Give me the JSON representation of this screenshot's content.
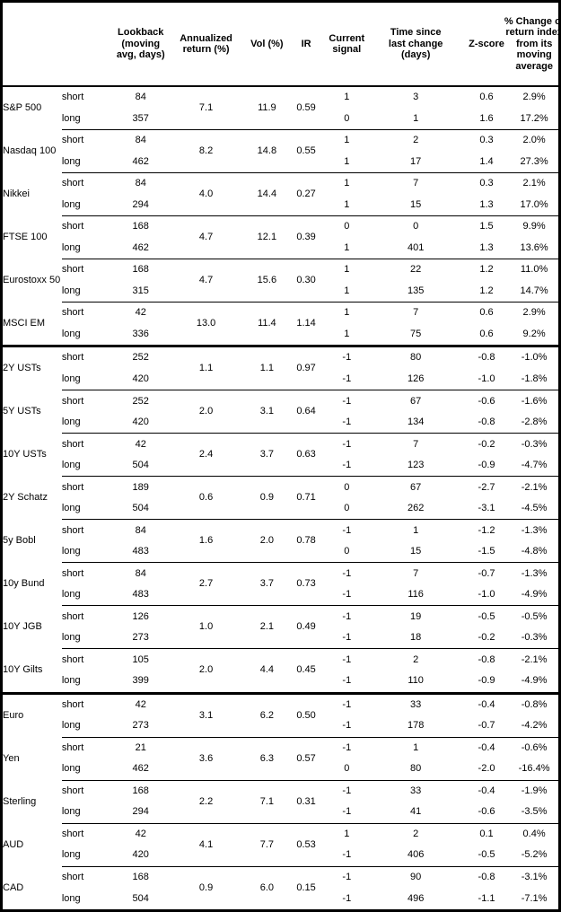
{
  "table": {
    "headers": {
      "name": "",
      "term": "",
      "lookback": "Lookback\n(moving\navg, days)",
      "annualized": "Annualized\nreturn (%)",
      "vol": "Vol (%)",
      "ir": "IR",
      "signal": "Current\nsignal",
      "time": "Time since\nlast change\n(days)",
      "zscore": "Z-score",
      "pct": "% Change of\nreturn index\nfrom its\nmoving\naverage"
    },
    "sections": [
      {
        "groups": [
          {
            "name": "S&P 500",
            "annualized": "7.1",
            "vol": "11.9",
            "ir": "0.59",
            "rows": [
              {
                "term": "short",
                "lookback": "84",
                "signal": "1",
                "time": "3",
                "zscore": "0.6",
                "pct": "2.9%"
              },
              {
                "term": "long",
                "lookback": "357",
                "signal": "0",
                "time": "1",
                "zscore": "1.6",
                "pct": "17.2%"
              }
            ]
          },
          {
            "name": "Nasdaq 100",
            "annualized": "8.2",
            "vol": "14.8",
            "ir": "0.55",
            "rows": [
              {
                "term": "short",
                "lookback": "84",
                "signal": "1",
                "time": "2",
                "zscore": "0.3",
                "pct": "2.0%"
              },
              {
                "term": "long",
                "lookback": "462",
                "signal": "1",
                "time": "17",
                "zscore": "1.4",
                "pct": "27.3%"
              }
            ]
          },
          {
            "name": "Nikkei",
            "annualized": "4.0",
            "vol": "14.4",
            "ir": "0.27",
            "rows": [
              {
                "term": "short",
                "lookback": "84",
                "signal": "1",
                "time": "7",
                "zscore": "0.3",
                "pct": "2.1%"
              },
              {
                "term": "long",
                "lookback": "294",
                "signal": "1",
                "time": "15",
                "zscore": "1.3",
                "pct": "17.0%"
              }
            ]
          },
          {
            "name": "FTSE 100",
            "annualized": "4.7",
            "vol": "12.1",
            "ir": "0.39",
            "rows": [
              {
                "term": "short",
                "lookback": "168",
                "signal": "0",
                "time": "0",
                "zscore": "1.5",
                "pct": "9.9%"
              },
              {
                "term": "long",
                "lookback": "462",
                "signal": "1",
                "time": "401",
                "zscore": "1.3",
                "pct": "13.6%"
              }
            ]
          },
          {
            "name": "Eurostoxx 50",
            "annualized": "4.7",
            "vol": "15.6",
            "ir": "0.30",
            "rows": [
              {
                "term": "short",
                "lookback": "168",
                "signal": "1",
                "time": "22",
                "zscore": "1.2",
                "pct": "11.0%"
              },
              {
                "term": "long",
                "lookback": "315",
                "signal": "1",
                "time": "135",
                "zscore": "1.2",
                "pct": "14.7%"
              }
            ]
          },
          {
            "name": "MSCI EM",
            "annualized": "13.0",
            "vol": "11.4",
            "ir": "1.14",
            "rows": [
              {
                "term": "short",
                "lookback": "42",
                "signal": "1",
                "time": "7",
                "zscore": "0.6",
                "pct": "2.9%"
              },
              {
                "term": "long",
                "lookback": "336",
                "signal": "1",
                "time": "75",
                "zscore": "0.6",
                "pct": "9.2%"
              }
            ]
          }
        ]
      },
      {
        "groups": [
          {
            "name": "2Y USTs",
            "annualized": "1.1",
            "vol": "1.1",
            "ir": "0.97",
            "rows": [
              {
                "term": "short",
                "lookback": "252",
                "signal": "-1",
                "time": "80",
                "zscore": "-0.8",
                "pct": "-1.0%"
              },
              {
                "term": "long",
                "lookback": "420",
                "signal": "-1",
                "time": "126",
                "zscore": "-1.0",
                "pct": "-1.8%"
              }
            ]
          },
          {
            "name": "5Y USTs",
            "annualized": "2.0",
            "vol": "3.1",
            "ir": "0.64",
            "rows": [
              {
                "term": "short",
                "lookback": "252",
                "signal": "-1",
                "time": "67",
                "zscore": "-0.6",
                "pct": "-1.6%"
              },
              {
                "term": "long",
                "lookback": "420",
                "signal": "-1",
                "time": "134",
                "zscore": "-0.8",
                "pct": "-2.8%"
              }
            ]
          },
          {
            "name": "10Y USTs",
            "annualized": "2.4",
            "vol": "3.7",
            "ir": "0.63",
            "rows": [
              {
                "term": "short",
                "lookback": "42",
                "signal": "-1",
                "time": "7",
                "zscore": "-0.2",
                "pct": "-0.3%"
              },
              {
                "term": "long",
                "lookback": "504",
                "signal": "-1",
                "time": "123",
                "zscore": "-0.9",
                "pct": "-4.7%"
              }
            ]
          },
          {
            "name": "2Y Schatz",
            "annualized": "0.6",
            "vol": "0.9",
            "ir": "0.71",
            "rows": [
              {
                "term": "short",
                "lookback": "189",
                "signal": "0",
                "time": "67",
                "zscore": "-2.7",
                "pct": "-2.1%"
              },
              {
                "term": "long",
                "lookback": "504",
                "signal": "0",
                "time": "262",
                "zscore": "-3.1",
                "pct": "-4.5%"
              }
            ]
          },
          {
            "name": "5y Bobl",
            "annualized": "1.6",
            "vol": "2.0",
            "ir": "0.78",
            "rows": [
              {
                "term": "short",
                "lookback": "84",
                "signal": "-1",
                "time": "1",
                "zscore": "-1.2",
                "pct": "-1.3%"
              },
              {
                "term": "long",
                "lookback": "483",
                "signal": "0",
                "time": "15",
                "zscore": "-1.5",
                "pct": "-4.8%"
              }
            ]
          },
          {
            "name": "10y Bund",
            "annualized": "2.7",
            "vol": "3.7",
            "ir": "0.73",
            "rows": [
              {
                "term": "short",
                "lookback": "84",
                "signal": "-1",
                "time": "7",
                "zscore": "-0.7",
                "pct": "-1.3%"
              },
              {
                "term": "long",
                "lookback": "483",
                "signal": "-1",
                "time": "116",
                "zscore": "-1.0",
                "pct": "-4.9%"
              }
            ]
          },
          {
            "name": "10Y JGB",
            "annualized": "1.0",
            "vol": "2.1",
            "ir": "0.49",
            "rows": [
              {
                "term": "short",
                "lookback": "126",
                "signal": "-1",
                "time": "19",
                "zscore": "-0.5",
                "pct": "-0.5%"
              },
              {
                "term": "long",
                "lookback": "273",
                "signal": "-1",
                "time": "18",
                "zscore": "-0.2",
                "pct": "-0.3%"
              }
            ]
          },
          {
            "name": "10Y Gilts",
            "annualized": "2.0",
            "vol": "4.4",
            "ir": "0.45",
            "rows": [
              {
                "term": "short",
                "lookback": "105",
                "signal": "-1",
                "time": "2",
                "zscore": "-0.8",
                "pct": "-2.1%"
              },
              {
                "term": "long",
                "lookback": "399",
                "signal": "-1",
                "time": "110",
                "zscore": "-0.9",
                "pct": "-4.9%"
              }
            ]
          }
        ]
      },
      {
        "groups": [
          {
            "name": "Euro",
            "annualized": "3.1",
            "vol": "6.2",
            "ir": "0.50",
            "rows": [
              {
                "term": "short",
                "lookback": "42",
                "signal": "-1",
                "time": "33",
                "zscore": "-0.4",
                "pct": "-0.8%"
              },
              {
                "term": "long",
                "lookback": "273",
                "signal": "-1",
                "time": "178",
                "zscore": "-0.7",
                "pct": "-4.2%"
              }
            ]
          },
          {
            "name": "Yen",
            "annualized": "3.6",
            "vol": "6.3",
            "ir": "0.57",
            "rows": [
              {
                "term": "short",
                "lookback": "21",
                "signal": "-1",
                "time": "1",
                "zscore": "-0.4",
                "pct": "-0.6%"
              },
              {
                "term": "long",
                "lookback": "462",
                "signal": "0",
                "time": "80",
                "zscore": "-2.0",
                "pct": "-16.4%"
              }
            ]
          },
          {
            "name": "Sterling",
            "annualized": "2.2",
            "vol": "7.1",
            "ir": "0.31",
            "rows": [
              {
                "term": "short",
                "lookback": "168",
                "signal": "-1",
                "time": "33",
                "zscore": "-0.4",
                "pct": "-1.9%"
              },
              {
                "term": "long",
                "lookback": "294",
                "signal": "-1",
                "time": "41",
                "zscore": "-0.6",
                "pct": "-3.5%"
              }
            ]
          },
          {
            "name": "AUD",
            "annualized": "4.1",
            "vol": "7.7",
            "ir": "0.53",
            "rows": [
              {
                "term": "short",
                "lookback": "42",
                "signal": "1",
                "time": "2",
                "zscore": "0.1",
                "pct": "0.4%"
              },
              {
                "term": "long",
                "lookback": "420",
                "signal": "-1",
                "time": "406",
                "zscore": "-0.5",
                "pct": "-5.2%"
              }
            ]
          },
          {
            "name": "CAD",
            "annualized": "0.9",
            "vol": "6.0",
            "ir": "0.15",
            "rows": [
              {
                "term": "short",
                "lookback": "168",
                "signal": "-1",
                "time": "90",
                "zscore": "-0.8",
                "pct": "-3.1%"
              },
              {
                "term": "long",
                "lookback": "504",
                "signal": "-1",
                "time": "496",
                "zscore": "-1.1",
                "pct": "-7.1%"
              }
            ]
          }
        ]
      }
    ]
  }
}
